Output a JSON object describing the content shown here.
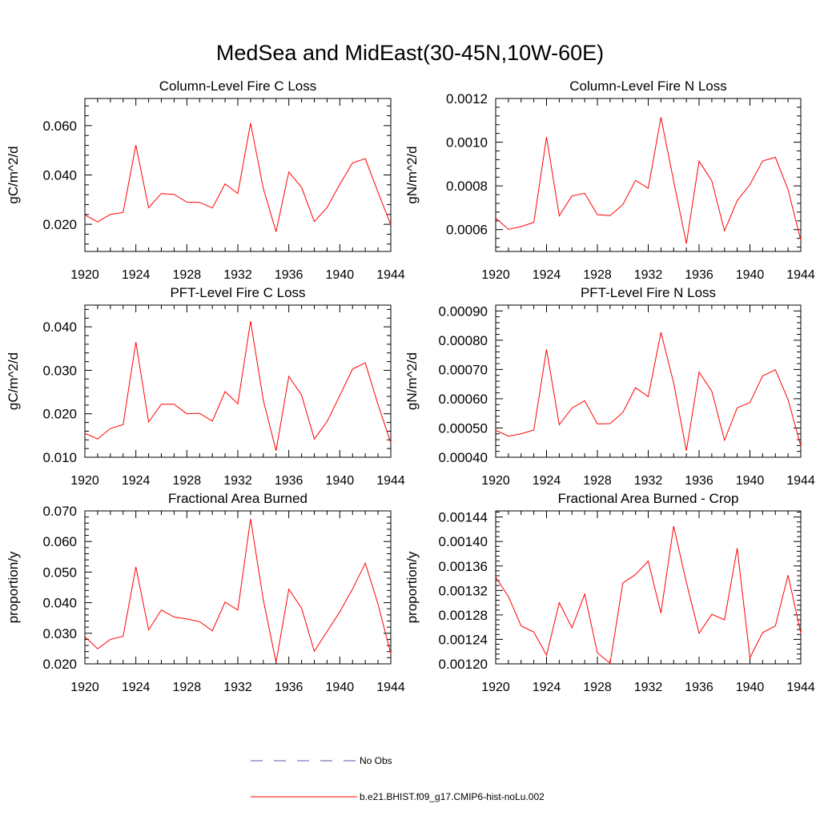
{
  "title": "MedSea and MidEast(30-45N,10W-60E)",
  "colors": {
    "series": "#ff0000",
    "obs": "#5555aa",
    "axis": "#000000"
  },
  "legend": [
    {
      "label": "No Obs",
      "style": "dashed",
      "color": "#5555aa"
    },
    {
      "label": "b.e21.BHIST.f09_g17.CMIP6-hist-noLu.002",
      "style": "solid",
      "color": "#ff0000"
    }
  ],
  "chart_data": [
    {
      "type": "line",
      "title": "Column-Level Fire C Loss",
      "ylabel": "gC/m^2/d",
      "xlabel": "",
      "xlim": [
        1920,
        1944
      ],
      "ylim": [
        0.009,
        0.071
      ],
      "xticks": [
        1920,
        1924,
        1928,
        1932,
        1936,
        1940,
        1944
      ],
      "xtick_labels": [
        "1920",
        "1924",
        "1928",
        "1932",
        "1936",
        "1940",
        "1944"
      ],
      "yticks": [
        0.02,
        0.04,
        0.06
      ],
      "ytick_labels": [
        "0.020",
        "0.040",
        "0.060"
      ],
      "series": [
        {
          "x": [
            1920,
            1921,
            1922,
            1923,
            1924,
            1925,
            1926,
            1927,
            1928,
            1929,
            1930,
            1931,
            1932,
            1933,
            1934,
            1935,
            1936,
            1937,
            1938,
            1939,
            1940,
            1941,
            1942,
            1943,
            1944
          ],
          "values": [
            0.0238,
            0.021,
            0.024,
            0.0248,
            0.0521,
            0.0267,
            0.0325,
            0.0321,
            0.029,
            0.0289,
            0.0266,
            0.0364,
            0.0325,
            0.061,
            0.0345,
            0.017,
            0.0412,
            0.035,
            0.0211,
            0.0268,
            0.0362,
            0.0449,
            0.0466,
            0.033,
            0.0198
          ]
        }
      ]
    },
    {
      "type": "line",
      "title": "Column-Level Fire N Loss",
      "ylabel": "gN/m^2/d",
      "xlabel": "",
      "xlim": [
        1920,
        1944
      ],
      "ylim": [
        0.0005,
        0.0012
      ],
      "xticks": [
        1920,
        1924,
        1928,
        1932,
        1936,
        1940,
        1944
      ],
      "xtick_labels": [
        "1920",
        "1924",
        "1928",
        "1932",
        "1936",
        "1940",
        "1944"
      ],
      "yticks": [
        0.0006,
        0.0008,
        0.001,
        0.0012
      ],
      "ytick_labels": [
        "0.0006",
        "0.0008",
        "0.0010",
        "0.0012"
      ],
      "series": [
        {
          "x": [
            1920,
            1921,
            1922,
            1923,
            1924,
            1925,
            1926,
            1927,
            1928,
            1929,
            1930,
            1931,
            1932,
            1933,
            1934,
            1935,
            1936,
            1937,
            1938,
            1939,
            1940,
            1941,
            1942,
            1943,
            1944
          ],
          "values": [
            0.000653,
            0.000601,
            0.000614,
            0.000633,
            0.001024,
            0.000663,
            0.000754,
            0.000766,
            0.000668,
            0.000664,
            0.000714,
            0.000825,
            0.000789,
            0.001114,
            0.000822,
            0.000536,
            0.000913,
            0.000823,
            0.000594,
            0.000733,
            0.000806,
            0.000914,
            0.000931,
            0.000783,
            0.000551
          ]
        }
      ]
    },
    {
      "type": "line",
      "title": "PFT-Level Fire C Loss",
      "ylabel": "gC/m^2/d",
      "xlabel": "",
      "xlim": [
        1920,
        1944
      ],
      "ylim": [
        0.01,
        0.045
      ],
      "xticks": [
        1920,
        1924,
        1928,
        1932,
        1936,
        1940,
        1944
      ],
      "xtick_labels": [
        "1920",
        "1924",
        "1928",
        "1932",
        "1936",
        "1940",
        "1944"
      ],
      "yticks": [
        0.01,
        0.02,
        0.03,
        0.04
      ],
      "ytick_labels": [
        "0.010",
        "0.020",
        "0.030",
        "0.040"
      ],
      "series": [
        {
          "x": [
            1920,
            1921,
            1922,
            1923,
            1924,
            1925,
            1926,
            1927,
            1928,
            1929,
            1930,
            1931,
            1932,
            1933,
            1934,
            1935,
            1936,
            1937,
            1938,
            1939,
            1940,
            1941,
            1942,
            1943,
            1944
          ],
          "values": [
            0.0155,
            0.0142,
            0.0166,
            0.0175,
            0.0365,
            0.0181,
            0.0222,
            0.0222,
            0.02,
            0.0201,
            0.0183,
            0.0251,
            0.0223,
            0.0413,
            0.0231,
            0.0115,
            0.0286,
            0.0243,
            0.0142,
            0.0182,
            0.0242,
            0.0303,
            0.0317,
            0.0221,
            0.0133
          ]
        }
      ]
    },
    {
      "type": "line",
      "title": "PFT-Level Fire N Loss",
      "ylabel": "gN/m^2/d",
      "xlabel": "",
      "xlim": [
        1920,
        1944
      ],
      "ylim": [
        0.0004,
        0.00092
      ],
      "xticks": [
        1920,
        1924,
        1928,
        1932,
        1936,
        1940,
        1944
      ],
      "xtick_labels": [
        "1920",
        "1924",
        "1928",
        "1932",
        "1936",
        "1940",
        "1944"
      ],
      "yticks": [
        0.0004,
        0.0005,
        0.0006,
        0.0007,
        0.0008,
        0.0009
      ],
      "ytick_labels": [
        "0.00040",
        "0.00050",
        "0.00060",
        "0.00070",
        "0.00080",
        "0.00090"
      ],
      "series": [
        {
          "x": [
            1920,
            1921,
            1922,
            1923,
            1924,
            1925,
            1926,
            1927,
            1928,
            1929,
            1930,
            1931,
            1932,
            1933,
            1934,
            1935,
            1936,
            1937,
            1938,
            1939,
            1940,
            1941,
            1942,
            1943,
            1944
          ],
          "values": [
            0.000492,
            0.000472,
            0.00048,
            0.000493,
            0.000769,
            0.000511,
            0.000568,
            0.000593,
            0.000514,
            0.000515,
            0.000553,
            0.000638,
            0.000607,
            0.000827,
            0.000654,
            0.000422,
            0.000691,
            0.000626,
            0.000458,
            0.000569,
            0.000587,
            0.000678,
            0.000699,
            0.000597,
            0.000438
          ]
        }
      ]
    },
    {
      "type": "line",
      "title": "Fractional Area Burned",
      "ylabel": "proportion/y",
      "xlabel": "",
      "xlim": [
        1920,
        1944
      ],
      "ylim": [
        0.02,
        0.07
      ],
      "xticks": [
        1920,
        1924,
        1928,
        1932,
        1936,
        1940,
        1944
      ],
      "xtick_labels": [
        "1920",
        "1924",
        "1928",
        "1932",
        "1936",
        "1940",
        "1944"
      ],
      "yticks": [
        0.02,
        0.03,
        0.04,
        0.05,
        0.06,
        0.07
      ],
      "ytick_labels": [
        "0.020",
        "0.030",
        "0.040",
        "0.050",
        "0.060",
        "0.070"
      ],
      "series": [
        {
          "x": [
            1920,
            1921,
            1922,
            1923,
            1924,
            1925,
            1926,
            1927,
            1928,
            1929,
            1930,
            1931,
            1932,
            1933,
            1934,
            1935,
            1936,
            1937,
            1938,
            1939,
            1940,
            1941,
            1942,
            1943,
            1944
          ],
          "values": [
            0.0289,
            0.0249,
            0.028,
            0.029,
            0.0517,
            0.0311,
            0.0376,
            0.0353,
            0.0347,
            0.0338,
            0.0308,
            0.0402,
            0.0376,
            0.0674,
            0.0409,
            0.0205,
            0.0444,
            0.0382,
            0.0241,
            0.0306,
            0.037,
            0.0445,
            0.0529,
            0.0395,
            0.0233
          ]
        }
      ]
    },
    {
      "type": "line",
      "title": "Fractional Area Burned - Crop",
      "ylabel": "proportion/y",
      "xlabel": "",
      "xlim": [
        1920,
        1944
      ],
      "ylim": [
        0.0012,
        0.00145
      ],
      "xticks": [
        1920,
        1924,
        1928,
        1932,
        1936,
        1940,
        1944
      ],
      "xtick_labels": [
        "1920",
        "1924",
        "1928",
        "1932",
        "1936",
        "1940",
        "1944"
      ],
      "yticks": [
        0.0012,
        0.00124,
        0.00128,
        0.00132,
        0.00136,
        0.0014,
        0.00144
      ],
      "ytick_labels": [
        "0.00120",
        "0.00124",
        "0.00128",
        "0.00132",
        "0.00136",
        "0.00140",
        "0.00144"
      ],
      "series": [
        {
          "x": [
            1920,
            1921,
            1922,
            1923,
            1924,
            1925,
            1926,
            1927,
            1928,
            1929,
            1930,
            1931,
            1932,
            1933,
            1934,
            1935,
            1936,
            1937,
            1938,
            1939,
            1940,
            1941,
            1942,
            1943,
            1944
          ],
          "values": [
            0.001342,
            0.00131,
            0.001262,
            0.001252,
            0.001214,
            0.0013,
            0.001259,
            0.001314,
            0.001218,
            0.001201,
            0.001332,
            0.001346,
            0.001368,
            0.001283,
            0.001425,
            0.001333,
            0.00125,
            0.001281,
            0.001272,
            0.001389,
            0.00121,
            0.001251,
            0.001262,
            0.001345,
            0.00125
          ]
        }
      ]
    }
  ]
}
